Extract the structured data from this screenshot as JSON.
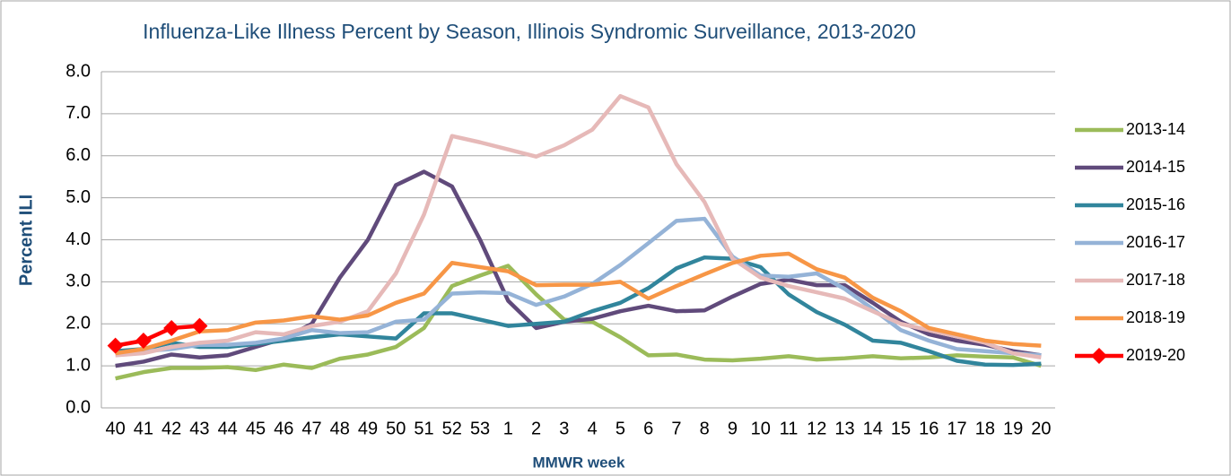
{
  "chart_data": {
    "type": "line",
    "title": "Influenza-Like Illness Percent by Season, Illinois Syndromic Surveillance, 2013-2020",
    "y_label": "Percent ILI",
    "x_label": "MMWR week",
    "categories": [
      "40",
      "41",
      "42",
      "43",
      "44",
      "45",
      "46",
      "47",
      "48",
      "49",
      "50",
      "51",
      "52",
      "53",
      "1",
      "2",
      "3",
      "4",
      "5",
      "6",
      "7",
      "8",
      "9",
      "10",
      "11",
      "12",
      "13",
      "14",
      "15",
      "16",
      "17",
      "18",
      "19",
      "20"
    ],
    "ylim": [
      0,
      8
    ],
    "yticks": [
      {
        "value": 0,
        "label": "0.0"
      },
      {
        "value": 1,
        "label": "1.0"
      },
      {
        "value": 2,
        "label": "2.0"
      },
      {
        "value": 3,
        "label": "3.0"
      },
      {
        "value": 4,
        "label": "4.0"
      },
      {
        "value": 5,
        "label": "5.0"
      },
      {
        "value": 6,
        "label": "6.0"
      },
      {
        "value": 7,
        "label": "7.0"
      },
      {
        "value": 8,
        "label": "8.0"
      }
    ],
    "grid": true,
    "legend": "right",
    "series": [
      {
        "name": "2013-14",
        "color": "#9bbb59",
        "values": [
          0.7,
          0.85,
          0.95,
          0.95,
          0.97,
          0.9,
          1.03,
          0.95,
          1.17,
          1.27,
          1.45,
          1.9,
          2.9,
          3.15,
          3.38,
          2.7,
          2.1,
          2.05,
          1.68,
          1.25,
          1.27,
          1.15,
          1.13,
          1.17,
          1.23,
          1.15,
          1.18,
          1.23,
          1.18,
          1.2,
          1.25,
          1.22,
          1.2,
          1.0
        ]
      },
      {
        "name": "2014-15",
        "color": "#604a7b",
        "values": [
          1.0,
          1.1,
          1.27,
          1.2,
          1.25,
          1.45,
          1.65,
          2.0,
          3.1,
          4.0,
          5.3,
          5.62,
          5.27,
          4.0,
          2.55,
          1.9,
          2.05,
          2.12,
          2.3,
          2.43,
          2.3,
          2.32,
          2.65,
          2.95,
          3.05,
          2.92,
          2.92,
          2.5,
          2.05,
          1.75,
          1.6,
          1.5,
          1.35,
          1.25
        ]
      },
      {
        "name": "2015-16",
        "color": "#31859c",
        "values": [
          1.35,
          1.4,
          1.55,
          1.45,
          1.45,
          1.52,
          1.6,
          1.68,
          1.75,
          1.7,
          1.65,
          2.25,
          2.25,
          2.1,
          1.95,
          2.0,
          2.05,
          2.3,
          2.5,
          2.85,
          3.32,
          3.58,
          3.55,
          3.35,
          2.7,
          2.28,
          1.98,
          1.6,
          1.55,
          1.35,
          1.12,
          1.03,
          1.02,
          1.05
        ]
      },
      {
        "name": "2016-17",
        "color": "#95b3d7",
        "values": [
          1.3,
          1.35,
          1.4,
          1.5,
          1.5,
          1.55,
          1.65,
          1.85,
          1.78,
          1.8,
          2.05,
          2.1,
          2.72,
          2.75,
          2.73,
          2.45,
          2.65,
          2.95,
          3.4,
          3.92,
          4.45,
          4.5,
          3.6,
          3.15,
          3.12,
          3.2,
          2.83,
          2.35,
          1.85,
          1.6,
          1.4,
          1.35,
          1.3,
          1.25
        ]
      },
      {
        "name": "2017-18",
        "color": "#e6b9b8",
        "values": [
          1.25,
          1.3,
          1.45,
          1.55,
          1.6,
          1.8,
          1.75,
          1.95,
          2.05,
          2.3,
          3.2,
          4.6,
          6.47,
          6.32,
          6.15,
          5.98,
          6.25,
          6.62,
          7.42,
          7.15,
          5.8,
          4.9,
          3.55,
          3.1,
          2.9,
          2.75,
          2.6,
          2.3,
          2.0,
          1.85,
          1.7,
          1.55,
          1.3,
          1.2
        ]
      },
      {
        "name": "2018-19",
        "color": "#f79646",
        "values": [
          1.3,
          1.4,
          1.6,
          1.82,
          1.85,
          2.03,
          2.08,
          2.18,
          2.1,
          2.2,
          2.5,
          2.72,
          3.45,
          3.35,
          3.25,
          2.92,
          2.93,
          2.93,
          3.0,
          2.6,
          2.9,
          3.18,
          3.45,
          3.62,
          3.67,
          3.3,
          3.1,
          2.62,
          2.3,
          1.9,
          1.75,
          1.6,
          1.52,
          1.48
        ]
      },
      {
        "name": "2019-20",
        "color": "#ff0000",
        "marker": "diamond",
        "values": [
          1.48,
          1.6,
          1.9,
          1.95,
          null,
          null,
          null,
          null,
          null,
          null,
          null,
          null,
          null,
          null,
          null,
          null,
          null,
          null,
          null,
          null,
          null,
          null,
          null,
          null,
          null,
          null,
          null,
          null,
          null,
          null,
          null,
          null,
          null,
          null
        ]
      }
    ]
  }
}
